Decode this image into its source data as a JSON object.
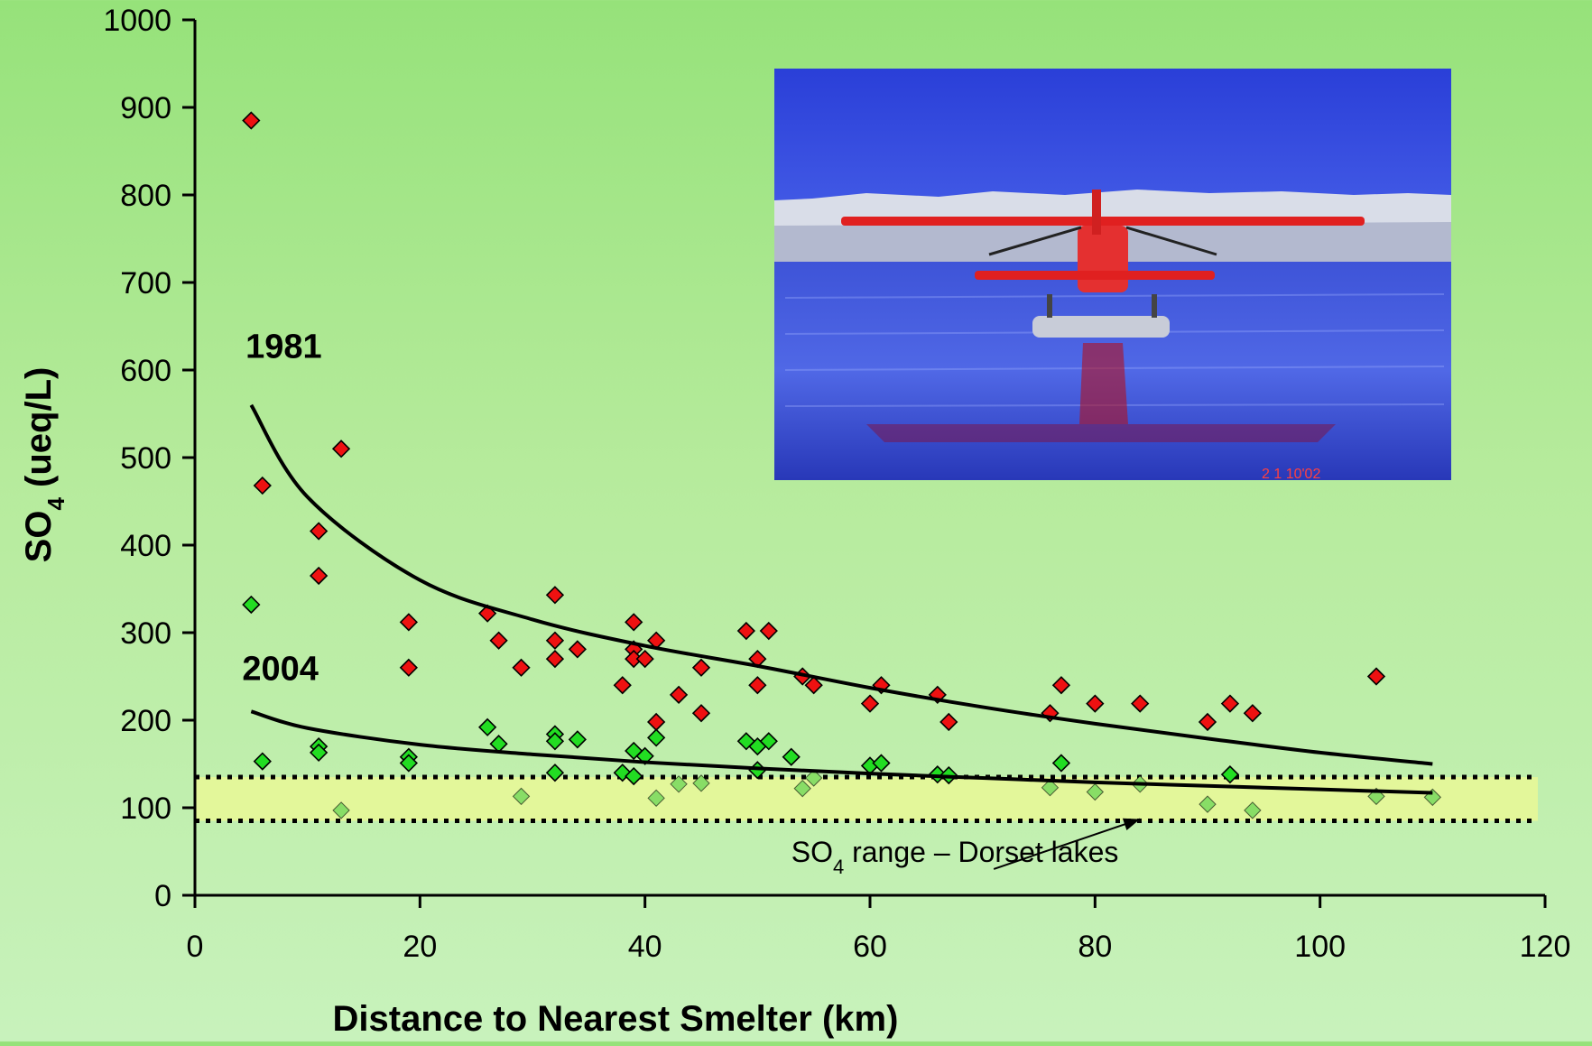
{
  "chart_data": {
    "type": "scatter",
    "xlabel": "Distance to Nearest Smelter (km)",
    "ylabel": "SO4 (ueq/L)",
    "ylabel_parts": {
      "main": "SO",
      "sub": "4",
      "rest": " (ueq/L)"
    },
    "xlim": [
      0,
      120
    ],
    "ylim": [
      0,
      1000
    ],
    "xticks": [
      "0",
      "20",
      "40",
      "60",
      "80",
      "100",
      "120"
    ],
    "yticks": [
      "0",
      "100",
      "200",
      "300",
      "400",
      "500",
      "600",
      "700",
      "800",
      "900",
      "1000"
    ],
    "grid": false,
    "legend": "none",
    "series": [
      {
        "name": "1981",
        "marker": "diamond",
        "color": "#ee1111",
        "points": [
          [
            5,
            885
          ],
          [
            6,
            468
          ],
          [
            11,
            416
          ],
          [
            11,
            365
          ],
          [
            13,
            510
          ],
          [
            19,
            312
          ],
          [
            19,
            260
          ],
          [
            26,
            322
          ],
          [
            27,
            291
          ],
          [
            29,
            260
          ],
          [
            32,
            343
          ],
          [
            32,
            291
          ],
          [
            32,
            270
          ],
          [
            34,
            281
          ],
          [
            38,
            240
          ],
          [
            39,
            312
          ],
          [
            39,
            281
          ],
          [
            39,
            270
          ],
          [
            40,
            270
          ],
          [
            41,
            291
          ],
          [
            41,
            198
          ],
          [
            43,
            229
          ],
          [
            45,
            260
          ],
          [
            45,
            208
          ],
          [
            49,
            302
          ],
          [
            50,
            270
          ],
          [
            50,
            240
          ],
          [
            51,
            302
          ],
          [
            54,
            250
          ],
          [
            55,
            240
          ],
          [
            60,
            219
          ],
          [
            61,
            240
          ],
          [
            66,
            229
          ],
          [
            67,
            198
          ],
          [
            76,
            208
          ],
          [
            77,
            240
          ],
          [
            80,
            219
          ],
          [
            84,
            219
          ],
          [
            90,
            198
          ],
          [
            92,
            219
          ],
          [
            94,
            208
          ],
          [
            105,
            250
          ]
        ],
        "fit_curve": [
          [
            5,
            560
          ],
          [
            10,
            455
          ],
          [
            20,
            360
          ],
          [
            30,
            315
          ],
          [
            40,
            285
          ],
          [
            50,
            262
          ],
          [
            60,
            237
          ],
          [
            70,
            215
          ],
          [
            80,
            196
          ],
          [
            90,
            179
          ],
          [
            100,
            163
          ],
          [
            110,
            150
          ]
        ]
      },
      {
        "name": "2004",
        "marker": "diamond",
        "color": "#22dd22",
        "faded_color": "#88dd66",
        "band_threshold": 135,
        "points": [
          [
            5,
            332
          ],
          [
            6,
            153
          ],
          [
            11,
            170
          ],
          [
            11,
            163
          ],
          [
            13,
            97
          ],
          [
            19,
            158
          ],
          [
            19,
            151
          ],
          [
            26,
            192
          ],
          [
            27,
            173
          ],
          [
            29,
            113
          ],
          [
            32,
            184
          ],
          [
            32,
            176
          ],
          [
            32,
            140
          ],
          [
            34,
            178
          ],
          [
            38,
            140
          ],
          [
            39,
            165
          ],
          [
            39,
            136
          ],
          [
            40,
            159
          ],
          [
            41,
            180
          ],
          [
            41,
            111
          ],
          [
            43,
            127
          ],
          [
            45,
            128
          ],
          [
            49,
            176
          ],
          [
            50,
            170
          ],
          [
            50,
            143
          ],
          [
            51,
            176
          ],
          [
            53,
            158
          ],
          [
            54,
            122
          ],
          [
            55,
            134
          ],
          [
            60,
            148
          ],
          [
            61,
            151
          ],
          [
            66,
            138
          ],
          [
            67,
            137
          ],
          [
            76,
            123
          ],
          [
            77,
            151
          ],
          [
            80,
            118
          ],
          [
            84,
            127
          ],
          [
            90,
            104
          ],
          [
            92,
            138
          ],
          [
            94,
            97
          ],
          [
            105,
            113
          ],
          [
            110,
            112
          ]
        ],
        "fit_curve": [
          [
            5,
            210
          ],
          [
            10,
            191
          ],
          [
            20,
            172
          ],
          [
            30,
            161
          ],
          [
            40,
            152
          ],
          [
            50,
            145
          ],
          [
            60,
            139
          ],
          [
            70,
            134
          ],
          [
            80,
            129
          ],
          [
            90,
            125
          ],
          [
            100,
            121
          ],
          [
            110,
            117
          ]
        ]
      }
    ],
    "reference_band": {
      "label_main": "SO",
      "label_sub": "4",
      "label_rest": " range – Dorset lakes",
      "y_low": 85,
      "y_high": 135,
      "x_from": 0,
      "x_to": 120,
      "fill_color": "#e3f79a",
      "line_style": "dotted",
      "arrow_from": [
        71,
        30
      ],
      "arrow_to": [
        84,
        87
      ],
      "label_at": [
        53,
        38
      ]
    },
    "annotations": [
      {
        "text": "1981",
        "series": "1981",
        "at": [
          4.5,
          614
        ]
      },
      {
        "text": "2004",
        "series": "2004",
        "at": [
          4.2,
          246
        ]
      }
    ],
    "photo": {
      "alt": "Red floatplane on a lake with snowy forest",
      "date_stamp": "2 1 10'02"
    }
  }
}
